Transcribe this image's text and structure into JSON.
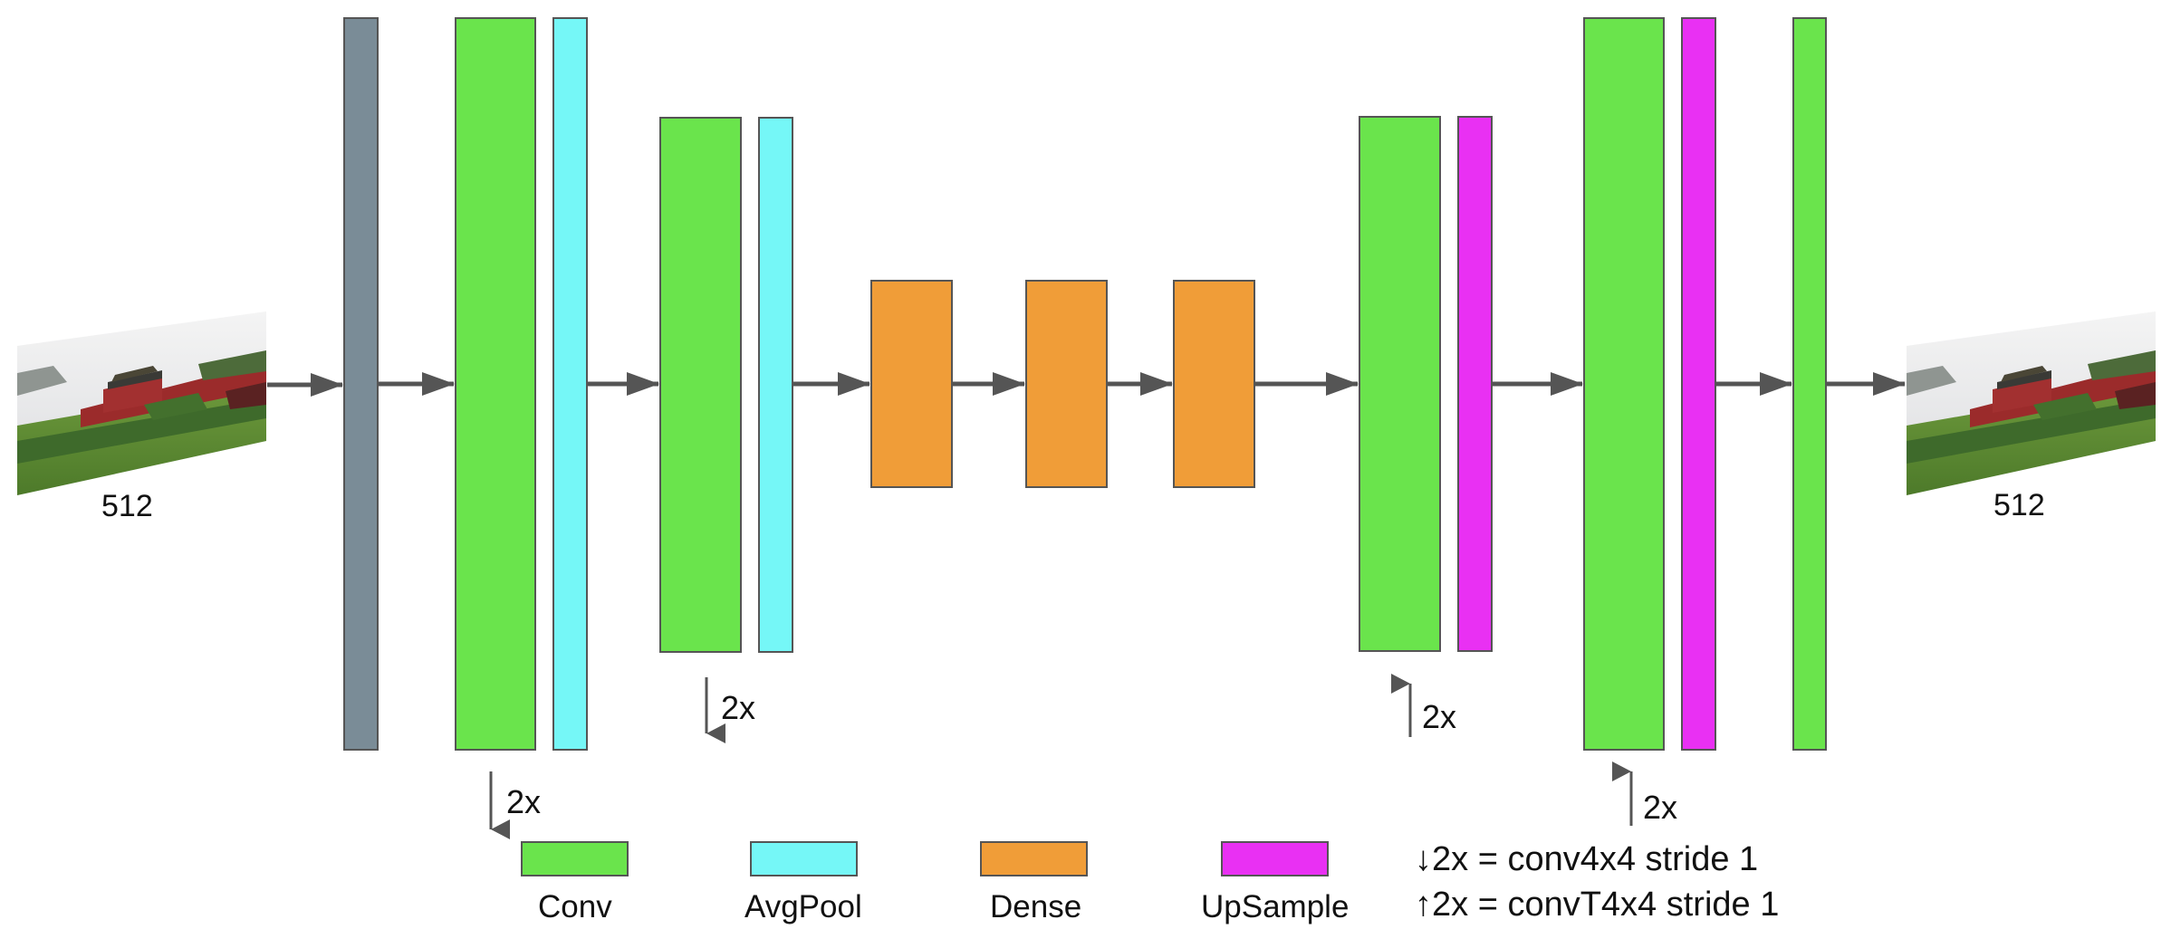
{
  "colors": {
    "conv": "#6ae44c",
    "avgpool": "#75f7f7",
    "dense": "#f09d38",
    "upsample": "#e930f3",
    "input": "#7a8c97",
    "stroke": "#555555",
    "arrow": "#555555"
  },
  "input_image": {
    "icon": "photo-thumbnail-icon",
    "label": "512"
  },
  "output_image": {
    "icon": "photo-thumbnail-icon",
    "label": "512"
  },
  "repeats": {
    "enc1": "2x",
    "enc2": "2x",
    "dec1": "2x",
    "dec2": "2x"
  },
  "legend": {
    "items": [
      {
        "key": "conv",
        "label": "Conv"
      },
      {
        "key": "avgpool",
        "label": "AvgPool"
      },
      {
        "key": "dense",
        "label": "Dense"
      },
      {
        "key": "upsample",
        "label": "UpSample"
      }
    ]
  },
  "notes": {
    "down": "↓2x = conv4x4 stride 1",
    "up": "↑2x = convT4x4 stride 1"
  }
}
